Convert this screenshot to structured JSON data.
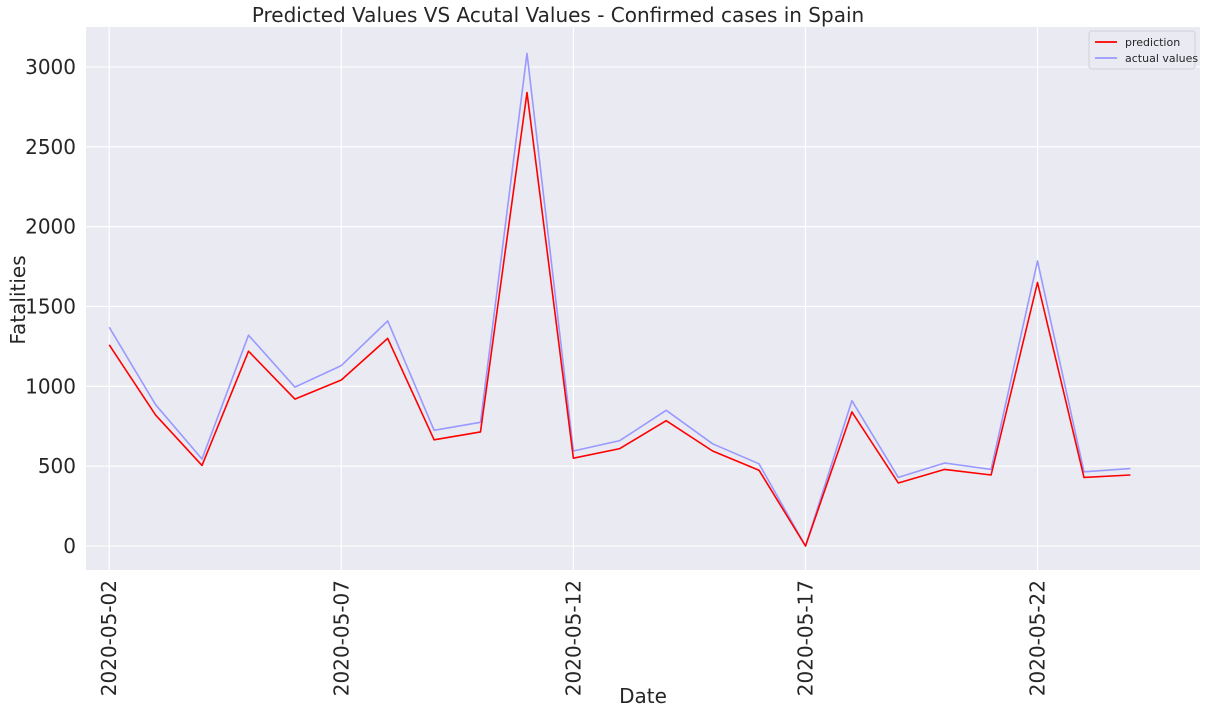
{
  "chart_data": {
    "type": "line",
    "title": "Predicted Values VS Acutal Values - Confirmed cases in Spain",
    "xlabel": "Date",
    "ylabel": "Fatalities",
    "x": [
      "2020-05-02",
      "2020-05-03",
      "2020-05-04",
      "2020-05-05",
      "2020-05-06",
      "2020-05-07",
      "2020-05-08",
      "2020-05-09",
      "2020-05-10",
      "2020-05-11",
      "2020-05-12",
      "2020-05-13",
      "2020-05-14",
      "2020-05-15",
      "2020-05-16",
      "2020-05-17",
      "2020-05-18",
      "2020-05-19",
      "2020-05-20",
      "2020-05-21",
      "2020-05-22",
      "2020-05-23",
      "2020-05-24"
    ],
    "xticks": [
      "2020-05-02",
      "2020-05-07",
      "2020-05-12",
      "2020-05-17",
      "2020-05-22"
    ],
    "xlim": [
      "2020-05-01T12:00",
      "2020-05-25T12:00"
    ],
    "ylim": [
      -150,
      3250
    ],
    "yticks": [
      0,
      500,
      1000,
      1500,
      2000,
      2500,
      3000
    ],
    "grid": true,
    "legend": "top-right",
    "series": [
      {
        "name": "prediction",
        "color": "#ff0000",
        "values": [
          1260,
          820,
          505,
          1220,
          920,
          1040,
          1300,
          665,
          715,
          2840,
          550,
          610,
          785,
          595,
          475,
          0,
          840,
          395,
          480,
          445,
          1650,
          430,
          445
        ]
      },
      {
        "name": "actual values",
        "color": "#9999ff",
        "values": [
          1370,
          885,
          545,
          1320,
          995,
          1130,
          1410,
          725,
          775,
          3085,
          595,
          660,
          850,
          640,
          515,
          0,
          910,
          430,
          520,
          480,
          1785,
          465,
          485
        ]
      }
    ]
  }
}
